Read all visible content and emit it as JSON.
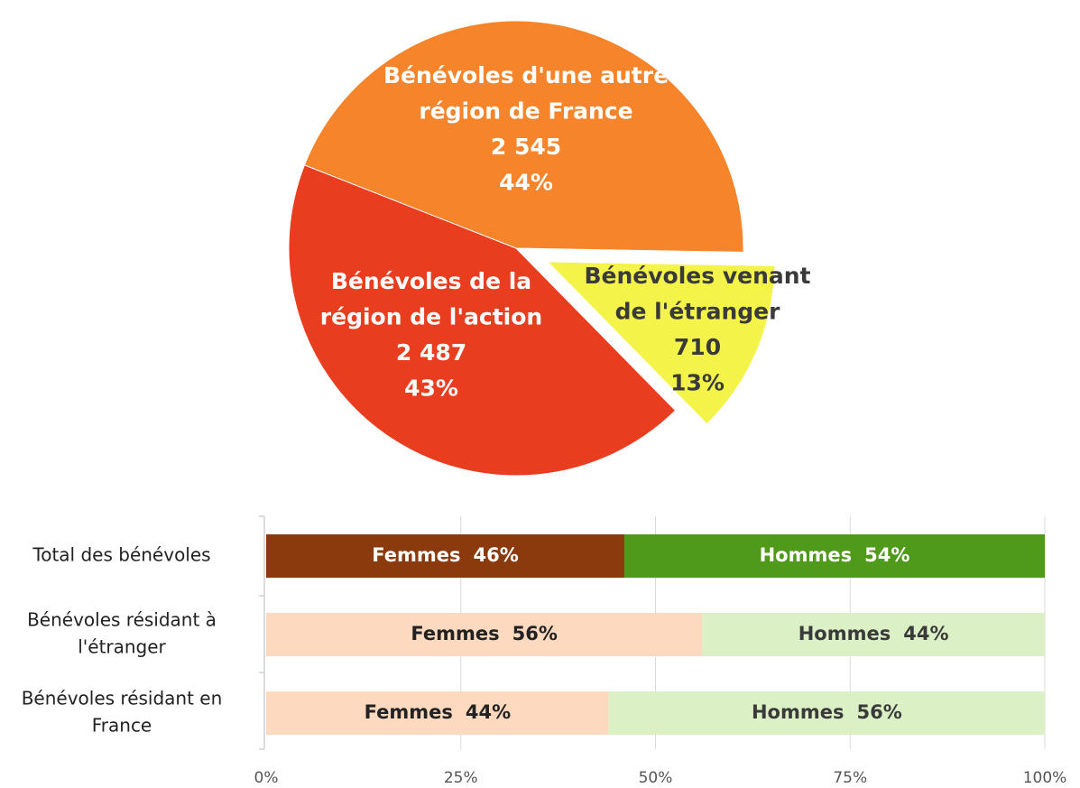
{
  "chart_data": [
    {
      "type": "pie",
      "categories": [
        [
          "Bénévoles d'une autre",
          "région de France"
        ],
        [
          "Bénévoles de la",
          "région de l'action"
        ],
        [
          "Bénévoles venant",
          "de l'étranger"
        ]
      ],
      "values": [
        2545,
        2487,
        710
      ],
      "value_labels": [
        "2 545",
        "2 487",
        "710"
      ],
      "percents": [
        44,
        43,
        13
      ],
      "percent_labels": [
        "44%",
        "43%",
        "13%"
      ],
      "colors": [
        "#f5842a",
        "#e93d20",
        "#f4f34a"
      ],
      "label_colors": [
        "#ffffff",
        "#ffffff",
        "#3a3a3a"
      ]
    },
    {
      "type": "stacked_barh",
      "categories": [
        [
          "Total des bénévoles"
        ],
        [
          "Bénévoles résidant à",
          "l'étranger"
        ],
        [
          "Bénévoles résidant en",
          "France"
        ]
      ],
      "series": [
        {
          "name": "Femmes",
          "values": [
            46,
            56,
            44
          ],
          "value_labels": [
            "46%",
            "56%",
            "44%"
          ],
          "colors": [
            "#8a3a0c",
            "#fcd9bf",
            "#fcd9bf"
          ],
          "label_colors": [
            "#ffffff",
            "#222222",
            "#222222"
          ]
        },
        {
          "name": "Hommes",
          "values": [
            54,
            44,
            56
          ],
          "value_labels": [
            "54%",
            "44%",
            "56%"
          ],
          "colors": [
            "#4f9a1b",
            "#dcf0c6",
            "#dcf0c6"
          ],
          "label_colors": [
            "#ffffff",
            "#3a3a3a",
            "#3a3a3a"
          ]
        }
      ],
      "xlim": [
        0,
        100
      ],
      "xticks": [
        {
          "value": 0,
          "label": "0%"
        },
        {
          "value": 25,
          "label": "25%"
        },
        {
          "value": 50,
          "label": "50%"
        },
        {
          "value": 75,
          "label": "75%"
        },
        {
          "value": 100,
          "label": "100%"
        }
      ],
      "grid": true
    }
  ]
}
